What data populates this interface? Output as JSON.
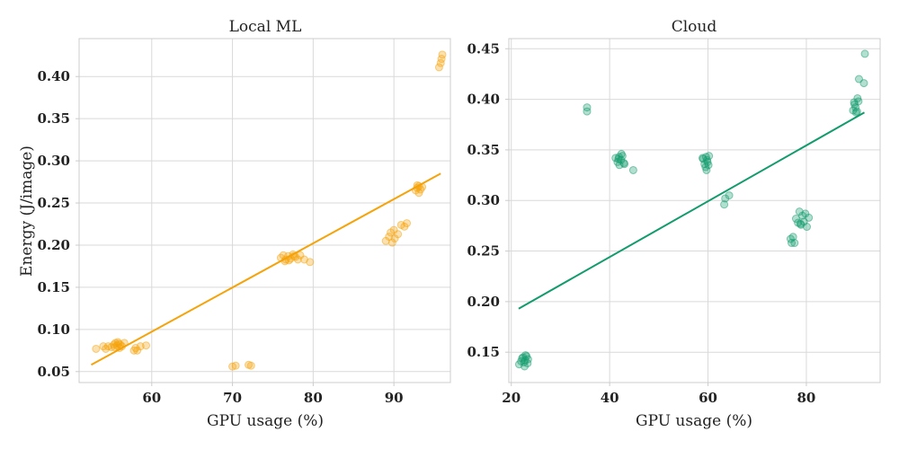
{
  "chart_data": [
    {
      "type": "scatter",
      "title": "Local ML",
      "xlabel": "GPU usage (%)",
      "ylabel": "Energy (J/image)",
      "xlim": [
        51,
        97
      ],
      "ylim": [
        0.037,
        0.445
      ],
      "xticks": [
        60,
        70,
        80,
        90
      ],
      "yticks": [
        0.05,
        0.1,
        0.15,
        0.2,
        0.25,
        0.3,
        0.35,
        0.4
      ],
      "ytick_labels": [
        "0.05",
        "0.10",
        "0.15",
        "0.20",
        "0.25",
        "0.30",
        "0.35",
        "0.40"
      ],
      "grid": true,
      "color": "#f5a30a",
      "series": [
        {
          "x": [
            53.1,
            54.0,
            54.3,
            54.6,
            55.0,
            55.3,
            55.5,
            55.7,
            55.9,
            56.1,
            56.3,
            56.6,
            55.4,
            55.8,
            56.0,
            57.8,
            58.0,
            58.2,
            58.6,
            59.3,
            70.0,
            70.4,
            72.0,
            72.3,
            76.0,
            76.3,
            76.6,
            76.9,
            77.2,
            77.5,
            77.8,
            78.1,
            78.4,
            76.5,
            77.0,
            77.6,
            78.9,
            79.6,
            89.0,
            89.4,
            89.8,
            90.1,
            89.6,
            90.0,
            90.5,
            90.9,
            91.3,
            91.6,
            92.7,
            92.9,
            93.1,
            93.3,
            93.5,
            93.1,
            92.9,
            95.6,
            95.8,
            95.9,
            96.0
          ],
          "y": [
            0.077,
            0.08,
            0.077,
            0.08,
            0.079,
            0.082,
            0.084,
            0.081,
            0.083,
            0.082,
            0.08,
            0.084,
            0.079,
            0.085,
            0.078,
            0.075,
            0.078,
            0.075,
            0.08,
            0.081,
            0.056,
            0.057,
            0.058,
            0.057,
            0.185,
            0.188,
            0.183,
            0.187,
            0.184,
            0.189,
            0.186,
            0.183,
            0.188,
            0.181,
            0.182,
            0.187,
            0.183,
            0.18,
            0.205,
            0.21,
            0.203,
            0.208,
            0.215,
            0.218,
            0.213,
            0.224,
            0.222,
            0.226,
            0.265,
            0.268,
            0.27,
            0.266,
            0.269,
            0.262,
            0.271,
            0.411,
            0.416,
            0.421,
            0.426
          ]
        }
      ],
      "trendline": {
        "x": [
          52.5,
          95.8
        ],
        "y": [
          0.058,
          0.285
        ]
      }
    },
    {
      "type": "scatter",
      "title": "Cloud",
      "xlabel": "GPU usage (%)",
      "ylabel": "",
      "xlim": [
        19.5,
        95
      ],
      "ylim": [
        0.12,
        0.46
      ],
      "xticks": [
        20,
        40,
        60,
        80
      ],
      "yticks": [
        0.15,
        0.2,
        0.25,
        0.3,
        0.35,
        0.4,
        0.45
      ],
      "ytick_labels": [
        "0.15",
        "0.20",
        "0.25",
        "0.30",
        "0.35",
        "0.40",
        "0.45"
      ],
      "grid": true,
      "color": "#129b6c",
      "series": [
        {
          "x": [
            21.6,
            22.0,
            22.4,
            22.8,
            23.1,
            23.4,
            22.6,
            22.9,
            22.2,
            23.3,
            22.7,
            35.4,
            35.4,
            41.2,
            41.6,
            42.0,
            42.3,
            42.6,
            42.9,
            41.8,
            42.4,
            43.0,
            41.9,
            44.8,
            59.0,
            59.3,
            59.6,
            59.9,
            60.2,
            59.5,
            59.8,
            60.1,
            58.9,
            59.7,
            63.3,
            63.5,
            64.3,
            76.8,
            77.0,
            77.3,
            77.6,
            77.9,
            78.3,
            78.6,
            78.9,
            79.2,
            79.5,
            79.8,
            80.1,
            80.5,
            78.8,
            89.5,
            89.8,
            90.0,
            90.3,
            90.6,
            89.7,
            90.1,
            90.4,
            90.7,
            91.7,
            91.9
          ],
          "y": [
            0.138,
            0.141,
            0.145,
            0.142,
            0.146,
            0.143,
            0.14,
            0.147,
            0.144,
            0.139,
            0.136,
            0.388,
            0.392,
            0.342,
            0.338,
            0.335,
            0.34,
            0.344,
            0.337,
            0.341,
            0.346,
            0.336,
            0.343,
            0.33,
            0.341,
            0.336,
            0.343,
            0.338,
            0.344,
            0.333,
            0.34,
            0.335,
            0.342,
            0.33,
            0.296,
            0.302,
            0.305,
            0.262,
            0.258,
            0.264,
            0.258,
            0.282,
            0.278,
            0.289,
            0.276,
            0.285,
            0.279,
            0.287,
            0.274,
            0.283,
            0.277,
            0.389,
            0.395,
            0.392,
            0.388,
            0.398,
            0.397,
            0.387,
            0.401,
            0.42,
            0.416,
            0.445
          ]
        }
      ],
      "trendline": {
        "x": [
          21.5,
          91.8
        ],
        "y": [
          0.193,
          0.387
        ]
      }
    }
  ]
}
